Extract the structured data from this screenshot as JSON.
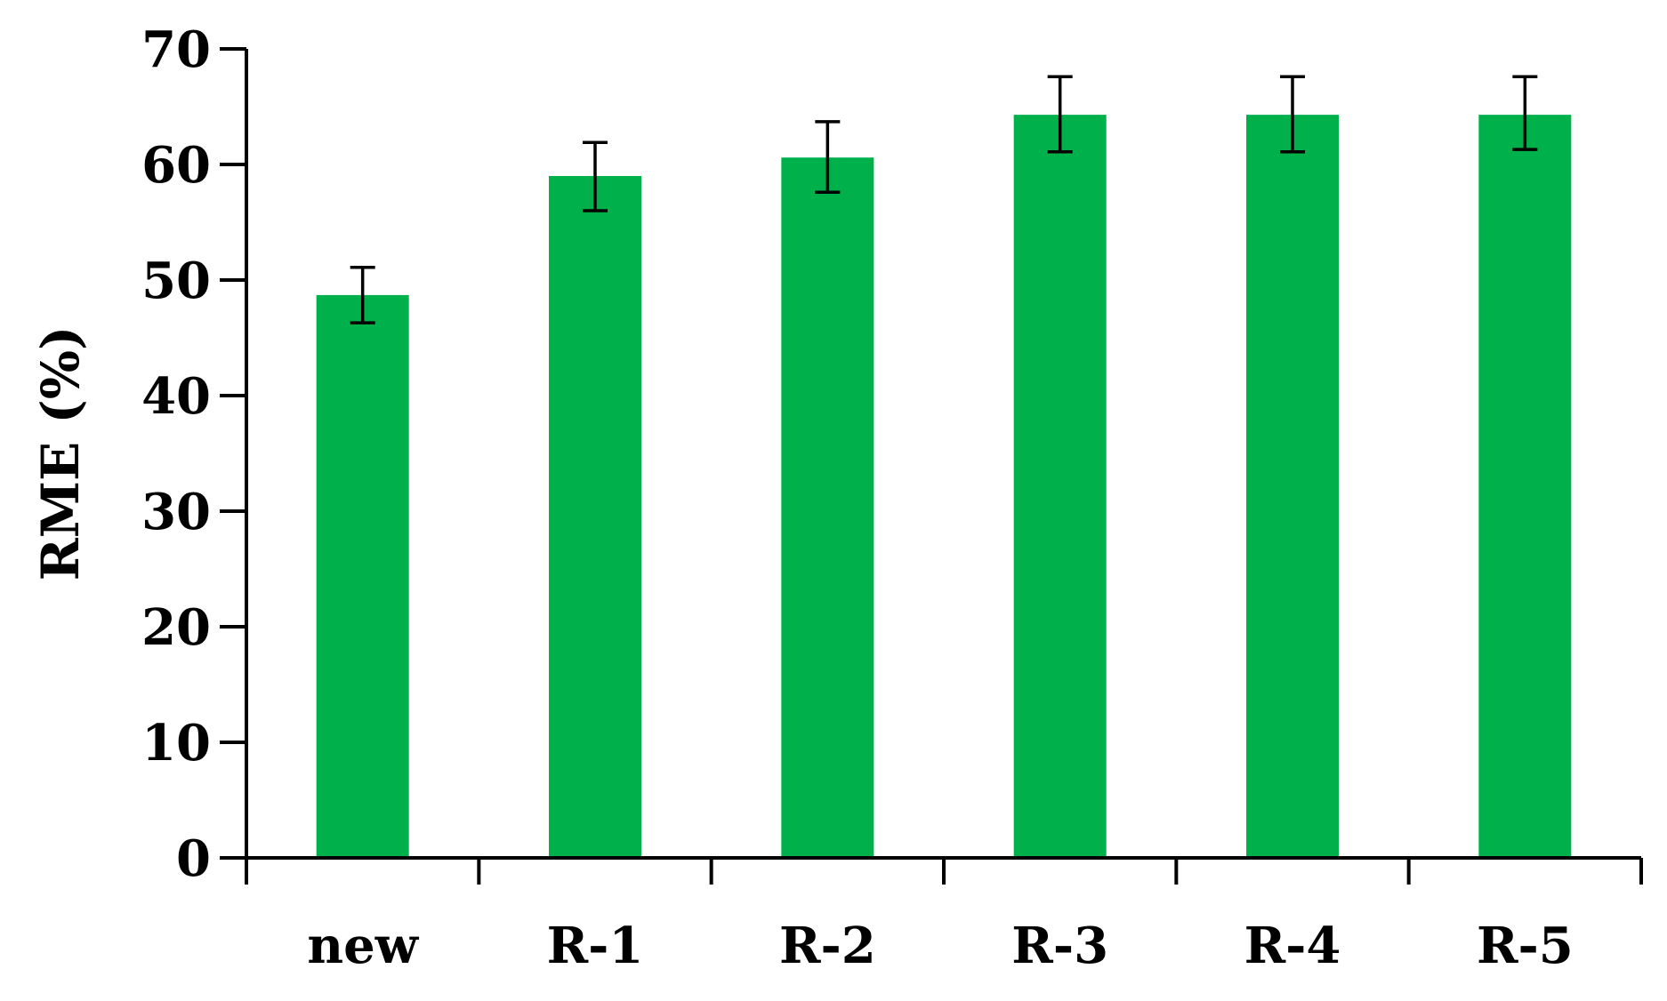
{
  "chart_data": {
    "type": "bar",
    "title": "",
    "xlabel": "",
    "ylabel": "RME (%)",
    "categories": [
      "new",
      "R-1",
      "R-2",
      "R-3",
      "R-4",
      "R-5"
    ],
    "values": [
      48.7,
      59.0,
      60.6,
      64.3,
      64.3,
      64.3
    ],
    "error_low": [
      46.3,
      56.0,
      57.6,
      61.1,
      61.1,
      61.3
    ],
    "error_high": [
      51.1,
      61.9,
      63.7,
      67.6,
      67.6,
      67.6
    ],
    "ylim": [
      0,
      70
    ],
    "yticks": [
      0,
      10,
      20,
      30,
      40,
      50,
      60,
      70
    ],
    "bar_color": "#00b04a",
    "grid": false,
    "legend": "none"
  }
}
